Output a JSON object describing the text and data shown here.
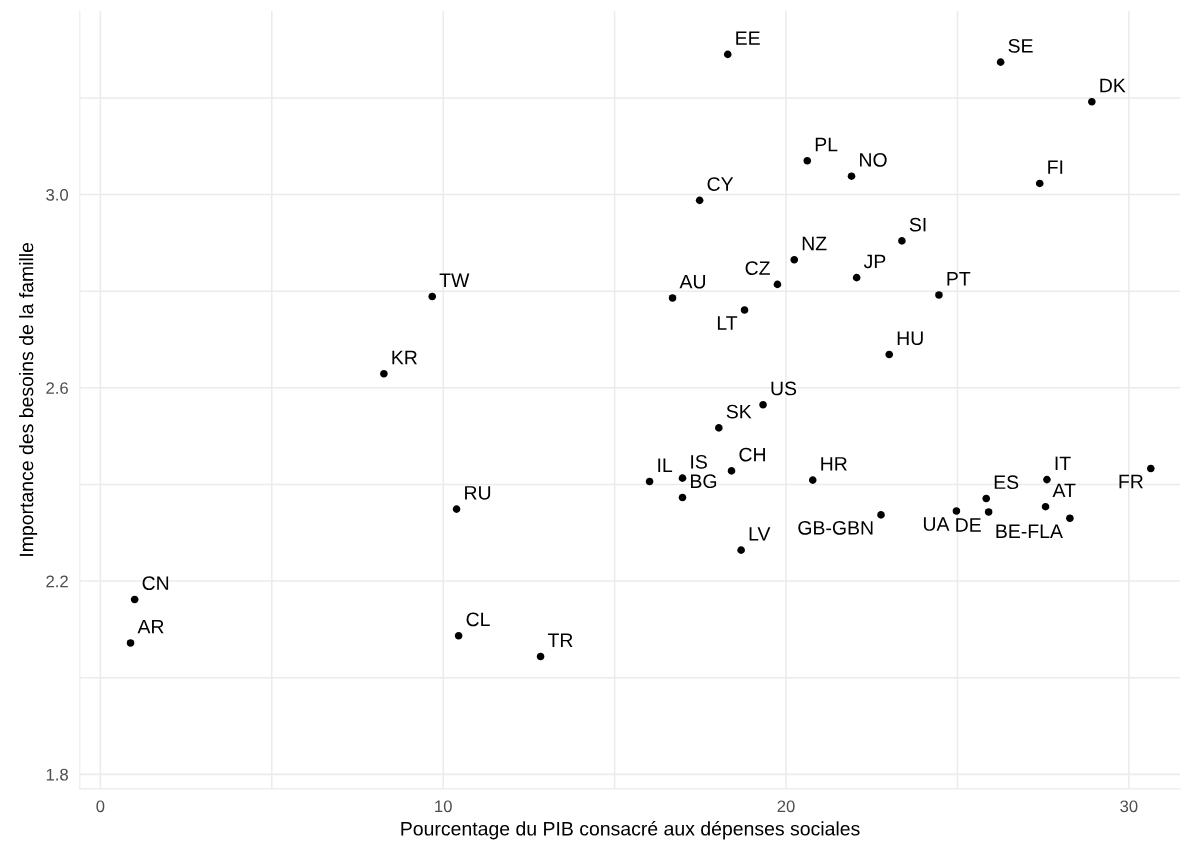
{
  "chart_data": {
    "type": "scatter",
    "xlabel": "Pourcentage du PIB consacré aux dépenses sociales",
    "ylabel": "Importance des besoins de la famille",
    "series": [
      {
        "color": "#000000",
        "x": [
          18.3,
          26.26,
          28.92,
          20.62,
          21.91,
          27.4,
          17.48,
          23.38,
          20.24,
          22.06,
          19.75,
          16.69,
          24.46,
          18.79,
          23.01,
          19.33,
          18.04,
          16.02,
          16.98,
          18.41,
          16.98,
          20.78,
          18.69,
          22.77,
          24.97,
          25.84,
          25.91,
          27.61,
          27.57,
          28.28,
          30.64,
          9.68,
          8.27,
          10.39,
          1.0,
          0.88,
          10.45,
          12.84
        ],
        "values": [
          3.29,
          3.274,
          3.192,
          3.07,
          3.038,
          3.023,
          2.988,
          2.904,
          2.865,
          2.828,
          2.814,
          2.786,
          2.792,
          2.761,
          2.669,
          2.565,
          2.517,
          2.406,
          2.413,
          2.428,
          2.373,
          2.409,
          2.264,
          2.337,
          2.345,
          2.371,
          2.343,
          2.41,
          2.354,
          2.33,
          2.433,
          2.789,
          2.629,
          2.349,
          2.162,
          2.072,
          2.087,
          2.044
        ]
      }
    ],
    "annotations": [
      {
        "text": "EE",
        "x": 18.3,
        "y": 3.29
      },
      {
        "text": "SE",
        "x": 26.26,
        "y": 3.274
      },
      {
        "text": "DK",
        "x": 28.92,
        "y": 3.192
      },
      {
        "text": "PL",
        "x": 20.62,
        "y": 3.07
      },
      {
        "text": "NO",
        "x": 21.91,
        "y": 3.038
      },
      {
        "text": "FI",
        "x": 27.4,
        "y": 3.023
      },
      {
        "text": "CY",
        "x": 17.48,
        "y": 2.988
      },
      {
        "text": "SI",
        "x": 23.38,
        "y": 2.904
      },
      {
        "text": "NZ",
        "x": 20.24,
        "y": 2.865
      },
      {
        "text": "JP",
        "x": 22.06,
        "y": 2.828
      },
      {
        "text": "CZ",
        "x": 19.75,
        "y": 2.814
      },
      {
        "text": "AU",
        "x": 16.69,
        "y": 2.786
      },
      {
        "text": "PT",
        "x": 24.46,
        "y": 2.792
      },
      {
        "text": "LT",
        "x": 18.79,
        "y": 2.761
      },
      {
        "text": "HU",
        "x": 23.01,
        "y": 2.669
      },
      {
        "text": "US",
        "x": 19.33,
        "y": 2.565
      },
      {
        "text": "SK",
        "x": 18.04,
        "y": 2.517
      },
      {
        "text": "IL",
        "x": 16.02,
        "y": 2.406
      },
      {
        "text": "IS",
        "x": 16.98,
        "y": 2.413
      },
      {
        "text": "CH",
        "x": 18.41,
        "y": 2.428
      },
      {
        "text": "BG",
        "x": 16.98,
        "y": 2.373
      },
      {
        "text": "HR",
        "x": 20.78,
        "y": 2.409
      },
      {
        "text": "LV",
        "x": 18.69,
        "y": 2.264
      },
      {
        "text": "GB-GBN",
        "x": 22.77,
        "y": 2.337
      },
      {
        "text": "UA",
        "x": 24.97,
        "y": 2.345
      },
      {
        "text": "ES",
        "x": 25.84,
        "y": 2.371
      },
      {
        "text": "DE",
        "x": 25.91,
        "y": 2.343
      },
      {
        "text": "IT",
        "x": 27.61,
        "y": 2.41
      },
      {
        "text": "AT",
        "x": 27.57,
        "y": 2.354
      },
      {
        "text": "BE-FLA",
        "x": 28.28,
        "y": 2.33
      },
      {
        "text": "FR",
        "x": 30.64,
        "y": 2.433
      },
      {
        "text": "TW",
        "x": 9.68,
        "y": 2.789
      },
      {
        "text": "KR",
        "x": 8.27,
        "y": 2.629
      },
      {
        "text": "RU",
        "x": 10.39,
        "y": 2.349
      },
      {
        "text": "CN",
        "x": 1.0,
        "y": 2.162
      },
      {
        "text": "AR",
        "x": 0.88,
        "y": 2.072
      },
      {
        "text": "CL",
        "x": 10.45,
        "y": 2.087
      },
      {
        "text": "TR",
        "x": 12.84,
        "y": 2.044
      }
    ],
    "xlim": [
      -0.6,
      31.5
    ],
    "ylim": [
      1.77,
      3.38
    ],
    "xticks": [
      0,
      {
        "value": 5,
        "label": null
      },
      10,
      {
        "value": 15,
        "label": null
      },
      20,
      {
        "value": 25,
        "label": null
      },
      30
    ],
    "yticks": [
      1.8,
      {
        "value": 2.0,
        "label": null
      },
      2.2,
      {
        "value": 2.4,
        "label": null
      },
      2.6,
      {
        "value": 2.8,
        "label": null
      },
      {
        "value": 3.0,
        "label": "3.0"
      },
      {
        "value": 3.2,
        "label": null
      }
    ],
    "grid": true,
    "marker": "circle"
  }
}
